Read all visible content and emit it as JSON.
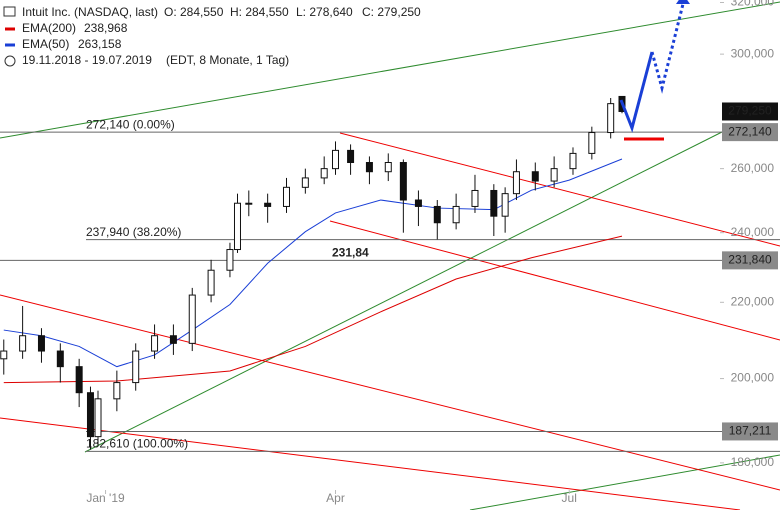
{
  "chart_data": {
    "type": "candlestick",
    "title": "Intuit Inc. (NASDAQ, last)",
    "quote": [
      "O: 284,550",
      "H: 284,550",
      "L: 278,640",
      "C: 279,250"
    ],
    "period": "19.11.2018 - 19.07.2019",
    "settings": "(EDT, 8 Monate, 1 Tag)",
    "log_scale": true,
    "xlim": [
      -1,
      190
    ],
    "xticks": [
      {
        "value": 27,
        "label": "Jan '19"
      },
      {
        "value": 88,
        "label": "Apr"
      },
      {
        "value": 150,
        "label": "Jul"
      }
    ],
    "ylim": [
      174000,
      321000
    ],
    "yticks": [
      {
        "value": 180000,
        "label": "180,000"
      },
      {
        "value": 200000,
        "label": "200,000"
      },
      {
        "value": 220000,
        "label": "220,000"
      },
      {
        "value": 240000,
        "label": "240,000"
      },
      {
        "value": 260000,
        "label": "260,000"
      },
      {
        "value": 300000,
        "label": "300,000"
      },
      {
        "value": 320000,
        "label": "320,000"
      }
    ],
    "x": [
      0,
      5,
      10,
      15,
      20,
      23,
      25,
      30,
      35,
      40,
      45,
      50,
      55,
      60,
      62,
      65,
      70,
      75,
      80,
      85,
      88,
      92,
      97,
      102,
      106,
      110,
      115,
      120,
      125,
      130,
      133,
      136,
      141,
      146,
      151,
      156,
      161,
      164
    ],
    "open": [
      205000,
      207000,
      211000,
      207000,
      203000,
      196500,
      186000,
      195000,
      199000,
      207000,
      211000,
      209000,
      222000,
      229000,
      235000,
      249000,
      249000,
      248000,
      254000,
      257000,
      260000,
      266000,
      262000,
      259000,
      262000,
      250000,
      248000,
      243000,
      248000,
      253000,
      245000,
      252000,
      259000,
      256000,
      260000,
      265000,
      272000,
      284550
    ],
    "high": [
      210000,
      219000,
      213000,
      209000,
      205000,
      198000,
      197000,
      202000,
      209000,
      214000,
      214000,
      224000,
      232000,
      237000,
      252000,
      253000,
      252000,
      257000,
      260000,
      264000,
      269000,
      268000,
      264000,
      265000,
      263000,
      253000,
      250000,
      252000,
      258000,
      255000,
      254000,
      263000,
      262000,
      264000,
      267000,
      274000,
      284000,
      284550
    ],
    "low": [
      201000,
      205000,
      204000,
      199000,
      193000,
      183000,
      184000,
      192000,
      197000,
      205000,
      206000,
      207000,
      220000,
      227000,
      234000,
      245000,
      243000,
      246000,
      252000,
      255000,
      258000,
      258000,
      255000,
      256000,
      240000,
      242000,
      238000,
      241000,
      246000,
      239000,
      240000,
      250000,
      253000,
      254000,
      258000,
      263000,
      270000,
      278640
    ],
    "close": [
      207000,
      211000,
      207000,
      203000,
      196500,
      186000,
      195000,
      199000,
      207000,
      211000,
      209000,
      222000,
      229000,
      235000,
      249000,
      249000,
      248000,
      254000,
      257000,
      260000,
      266000,
      262000,
      259000,
      262000,
      250000,
      248000,
      243000,
      248000,
      253000,
      245000,
      252000,
      259000,
      256000,
      260000,
      265000,
      272000,
      282000,
      279250
    ],
    "last_price": {
      "value": 279250,
      "label": "279,250"
    },
    "series": [
      {
        "name": "EMA(200)",
        "color": "#dd0000",
        "last_label": "238,968",
        "x": [
          0,
          30,
          60,
          80,
          100,
          120,
          140,
          164
        ],
        "values": [
          199000,
          199400,
          201900,
          208200,
          217400,
          226500,
          232600,
          238968
        ]
      },
      {
        "name": "EMA(50)",
        "color": "#1a3fd6",
        "last_label": "263,158",
        "x": [
          0,
          10,
          20,
          30,
          40,
          50,
          60,
          70,
          80,
          88,
          100,
          115,
          130,
          140,
          150,
          164
        ],
        "values": [
          212500,
          211000,
          208200,
          203000,
          206000,
          212500,
          219400,
          231000,
          240300,
          246000,
          250000,
          247500,
          247000,
          253100,
          256300,
          263158
        ]
      }
    ],
    "levels": [
      {
        "value": 272140,
        "label": "272,140 (0.00%)",
        "tag": "272,140"
      },
      {
        "value": 237940,
        "label": "237,940 (38.20%)"
      },
      {
        "value": 231840,
        "label": "231,84",
        "tag": "231,840"
      },
      {
        "value": 187211,
        "tag": "187,211"
      },
      {
        "value": 182610,
        "label": "182,610 (100.00%)"
      }
    ]
  }
}
